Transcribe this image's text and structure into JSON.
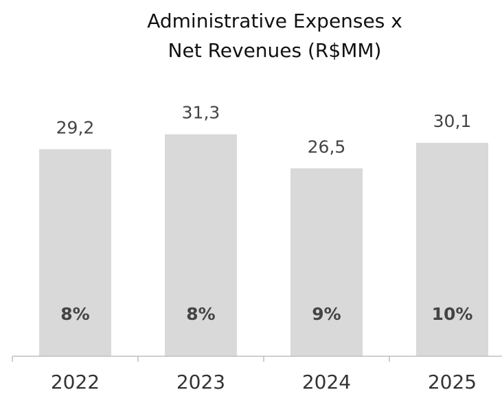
{
  "chart_data": {
    "type": "bar",
    "title": [
      "Administrative Expenses x",
      "Net Revenues (R$MM)"
    ],
    "categories": [
      "2022",
      "2023",
      "2024",
      "2025"
    ],
    "values": [
      29.2,
      31.3,
      26.5,
      30.1
    ],
    "value_labels": [
      "29,2",
      "31,3",
      "26,5",
      "30,1"
    ],
    "percent_values": [
      8,
      8,
      9,
      10
    ],
    "percent_labels": [
      "8%",
      "8%",
      "9%",
      "10%"
    ],
    "color": "#d9d9d9",
    "ylim": [
      0,
      35
    ]
  }
}
